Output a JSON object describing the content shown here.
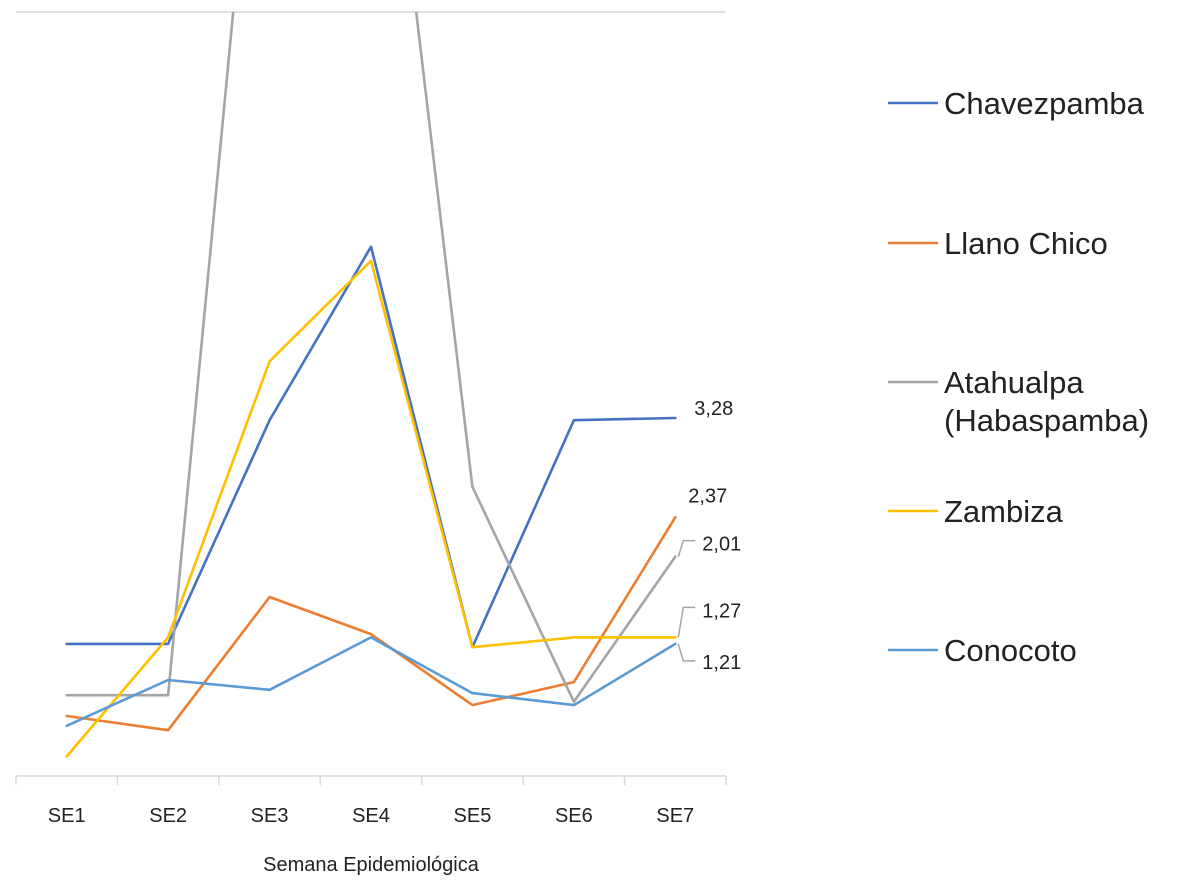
{
  "chart_data": {
    "type": "line",
    "categories": [
      "SE1",
      "SE2",
      "SE3",
      "SE4",
      "SE5",
      "SE6",
      "SE7"
    ],
    "xlabel": "Semana Epidemiológica",
    "ylim": [
      0,
      7
    ],
    "grid": "top line only",
    "legend_position": "right",
    "series": [
      {
        "name": "Chavezpamba",
        "color": "#4472C4",
        "values": [
          1.21,
          1.21,
          3.26,
          4.85,
          1.18,
          3.26,
          3.28
        ]
      },
      {
        "name": "Llano Chico",
        "color": "#ED7D31",
        "values": [
          0.55,
          0.42,
          1.64,
          1.3,
          0.65,
          0.86,
          2.37
        ]
      },
      {
        "name": "Atahualpa\n(Habaspamba)",
        "color": "#A5A5A5",
        "values": [
          0.74,
          0.74,
          10.5,
          10.5,
          2.65,
          0.68,
          2.01
        ]
      },
      {
        "name": "Zambiza",
        "color": "#FFC000",
        "values": [
          0.18,
          1.27,
          3.8,
          4.72,
          1.18,
          1.27,
          1.27
        ]
      },
      {
        "name": "Conocoto",
        "color": "#5B9BD5",
        "values": [
          0.46,
          0.88,
          0.79,
          1.27,
          0.76,
          0.65,
          1.21
        ]
      }
    ],
    "data_labels": [
      {
        "text": "3,28",
        "series": "Chavezpamba",
        "category": "SE7"
      },
      {
        "text": "2,37",
        "series": "Llano Chico",
        "category": "SE7"
      },
      {
        "text": "2,01",
        "series": "Atahualpa\n(Habaspamba)",
        "category": "SE7"
      },
      {
        "text": "1,27",
        "series": "Zambiza",
        "category": "SE7"
      },
      {
        "text": "1,21",
        "series": "Conocoto",
        "category": "SE7"
      }
    ]
  }
}
